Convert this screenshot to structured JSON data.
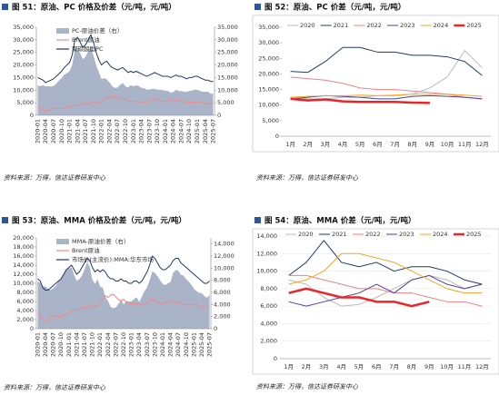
{
  "chart_data": [
    {
      "type": "combo",
      "title": "图 51：原油、PC 价格及价差（元/吨，元/吨）",
      "source": "资料来源：万得，信达证券研发中心",
      "categories": [
        "2020-01",
        null,
        null,
        "2020-04",
        null,
        null,
        "2020-07",
        null,
        null,
        "2020-10",
        null,
        null,
        "2021-01",
        null,
        null,
        "2021-04",
        null,
        null,
        "2021-07",
        null,
        null,
        "2021-10",
        null,
        null,
        "2022-01",
        null,
        null,
        "2022-04",
        null,
        null,
        "2022-07",
        null,
        null,
        "2022-10",
        null,
        null,
        "2023-01",
        null,
        null,
        "2023-04",
        null,
        null,
        "2023-07",
        null,
        null,
        "2023-10",
        null,
        null,
        "2024-01",
        null,
        null,
        "2024-04",
        null,
        null,
        "2024-07",
        null,
        null,
        "2024-10",
        null,
        null,
        "2025-01",
        null,
        null,
        "2025-04",
        null,
        null,
        "2025-07"
      ],
      "ylim": [
        0,
        35000
      ],
      "yticks": [
        0,
        {
          "value": 5000,
          "label": "5,000"
        },
        {
          "value": 10000,
          "label": "10,000"
        },
        {
          "value": 15000,
          "label": "15,000"
        },
        {
          "value": 20000,
          "label": "20,000"
        },
        {
          "value": 25000,
          "label": "25,000"
        },
        {
          "value": 30000,
          "label": "30,000"
        },
        {
          "value": 35000,
          "label": "35,000"
        }
      ],
      "y2lim": [
        0,
        35000
      ],
      "y2ticks": [
        0,
        {
          "value": 5000,
          "label": "5,000"
        },
        {
          "value": 10000,
          "label": "10,000"
        },
        {
          "value": 15000,
          "label": "15,000"
        },
        {
          "value": 20000,
          "label": "20,000"
        },
        {
          "value": 25000,
          "label": "25,000"
        },
        {
          "value": 30000,
          "label": "30,000"
        },
        {
          "value": 35000,
          "label": "35,000"
        }
      ],
      "grid": false,
      "series": [
        {
          "name": "PC-原油价差（右）",
          "style": "area",
          "axis": "y2",
          "color": "#a9b4c8",
          "values": [
            11800,
            11600,
            12000,
            11500,
            11600,
            11400,
            11700,
            12600,
            13800,
            14800,
            16100,
            16800,
            17500,
            20100,
            25900,
            26900,
            24700,
            22300,
            23300,
            25500,
            27200,
            23600,
            19900,
            17200,
            14400,
            14800,
            14200,
            13100,
            11600,
            10900,
            11000,
            12100,
            12800,
            11500,
            11100,
            12000,
            11500,
            11900,
            11700,
            10900,
            10800,
            10200,
            10300,
            10500,
            10500,
            10200,
            10200,
            10000,
            9900,
            9700,
            9000,
            9200,
            10200,
            9700,
            9600,
            9400,
            9300,
            9700,
            9800,
            10300,
            10100,
            9700,
            9400,
            9400,
            9400,
            8600,
            8600
          ]
        },
        {
          "name": "Brent原油",
          "style": "line",
          "color": "#f4878a",
          "values": [
            3200,
            2900,
            2000,
            1500,
            1900,
            2600,
            2800,
            2900,
            2700,
            2700,
            2900,
            3200,
            3500,
            3900,
            4100,
            4100,
            4300,
            4700,
            4700,
            4500,
            4800,
            5400,
            5100,
            4800,
            5600,
            6200,
            7300,
            6900,
            7400,
            7600,
            7000,
            6400,
            6200,
            6500,
            5900,
            5500,
            5500,
            5600,
            5300,
            5600,
            5200,
            5300,
            5700,
            6000,
            6500,
            6300,
            5800,
            5500,
            5600,
            5800,
            6000,
            6300,
            5800,
            5800,
            5900,
            5600,
            5200,
            5300,
            5200,
            5200,
            5400,
            5300,
            5100,
            4600,
            4600,
            4900,
            4900
          ]
        },
        {
          "name": "聚碳酸酯PC",
          "style": "line",
          "color": "#1f3864",
          "values": [
            15000,
            14500,
            14000,
            13000,
            13500,
            14000,
            14500,
            15500,
            16500,
            17500,
            19000,
            20000,
            21000,
            24000,
            30000,
            31000,
            29000,
            27000,
            28000,
            30000,
            32000,
            29000,
            25000,
            22000,
            20000,
            21000,
            21500,
            20000,
            19000,
            18500,
            18000,
            18500,
            19000,
            18000,
            17000,
            17500,
            17000,
            17500,
            17000,
            16500,
            16000,
            15500,
            16000,
            16500,
            17000,
            16500,
            16000,
            15500,
            15500,
            15500,
            15000,
            15500,
            16000,
            15500,
            15500,
            15000,
            14500,
            15000,
            15000,
            15500,
            15500,
            15000,
            14500,
            14000,
            14000,
            13500,
            13500
          ]
        }
      ]
    },
    {
      "type": "line",
      "title": "图 52：原油、PC 价差（元/吨，元/吨）",
      "source": "资料来源：万得，信达证券研发中心",
      "categories": [
        "1月",
        "2月",
        "3月",
        "4月",
        "5月",
        "6月",
        "7月",
        "8月",
        "9月",
        "10月",
        "11月",
        "12月"
      ],
      "ylim": [
        0,
        35000
      ],
      "yticks": [
        0,
        {
          "value": 5000,
          "label": "5,000"
        },
        {
          "value": 10000,
          "label": "10,000"
        },
        {
          "value": 15000,
          "label": "15,000"
        },
        {
          "value": 20000,
          "label": "20,000"
        },
        {
          "value": 25000,
          "label": "25,000"
        },
        {
          "value": 30000,
          "label": "30,000"
        },
        {
          "value": 35000,
          "label": "35,000"
        }
      ],
      "grid": false,
      "series": [
        {
          "name": "2020",
          "color": "#bbbbbb",
          "values": [
            12500,
            12000,
            12000,
            12500,
            12500,
            13000,
            13000,
            13500,
            15500,
            19000,
            27500,
            22000
          ]
        },
        {
          "name": "2021",
          "color": "#1f3a6e",
          "values": [
            20800,
            20500,
            24000,
            28500,
            28500,
            27000,
            27000,
            26000,
            26000,
            25500,
            24000,
            19500
          ]
        },
        {
          "name": "2022",
          "color": "#f08080",
          "values": [
            19000,
            18500,
            18000,
            17000,
            15500,
            15000,
            15000,
            14500,
            14000,
            13500,
            12500,
            12000
          ]
        },
        {
          "name": "2023",
          "color": "#4b3f9e",
          "values": [
            12000,
            12500,
            13000,
            12800,
            12500,
            12000,
            12000,
            12800,
            13000,
            12800,
            12500,
            12000
          ]
        },
        {
          "name": "2024",
          "color": "#f5a623",
          "values": [
            12500,
            12800,
            13000,
            13000,
            13200,
            13000,
            13200,
            13500,
            13500,
            13500,
            13200,
            12800
          ]
        },
        {
          "name": "2025",
          "color": "#e8262a",
          "width": 2.5,
          "values": [
            12000,
            11500,
            11800,
            11200,
            11000,
            11000,
            11000,
            10800,
            10700,
            null,
            null,
            null
          ]
        }
      ]
    },
    {
      "type": "combo",
      "title": "图 53：原油、MMA 价格及价差（元/吨，元/吨）",
      "source": "资料来源：万得，信达证券研发中心",
      "categories": [
        "2020-01",
        null,
        null,
        "2020-04",
        null,
        null,
        "2020-07",
        null,
        null,
        "2020-10",
        null,
        null,
        "2021-01",
        null,
        null,
        "2021-04",
        null,
        null,
        "2021-07",
        null,
        null,
        "2021-10",
        null,
        null,
        "2022-01",
        null,
        null,
        "2022-04",
        null,
        null,
        "2022-07",
        null,
        null,
        "2022-10",
        null,
        null,
        "2023-01",
        null,
        null,
        "2023-04",
        null,
        null,
        "2023-07",
        null,
        null,
        "2023-10",
        null,
        null,
        "2024-01",
        null,
        null,
        "2024-04",
        null,
        null,
        "2024-07",
        null,
        null,
        "2024-10",
        null,
        null,
        "2025-01",
        null,
        null,
        "2025-04",
        null,
        null,
        "2025-07"
      ],
      "ylim": [
        0,
        20000
      ],
      "yticks": [
        0,
        {
          "value": 2000,
          "label": "2,000"
        },
        {
          "value": 4000,
          "label": "4,000"
        },
        {
          "value": 6000,
          "label": "6,000"
        },
        {
          "value": 8000,
          "label": "8,000"
        },
        {
          "value": 10000,
          "label": "10,000"
        },
        {
          "value": 12000,
          "label": "12,000"
        },
        {
          "value": 14000,
          "label": "14,000"
        },
        {
          "value": 16000,
          "label": "16,000"
        },
        {
          "value": 18000,
          "label": "18,000"
        },
        {
          "value": 20000,
          "label": "20,000"
        }
      ],
      "y2lim": [
        0,
        15000
      ],
      "y2ticks": [
        0,
        {
          "value": 2000,
          "label": "2,000"
        },
        {
          "value": 4000,
          "label": "4,000"
        },
        {
          "value": 6000,
          "label": "6,000"
        },
        {
          "value": 8000,
          "label": "8,000"
        },
        {
          "value": 10000,
          "label": "10,000"
        },
        {
          "value": 12000,
          "label": "12,000"
        },
        {
          "value": 14000,
          "label": "14,000"
        }
      ],
      "grid": false,
      "series": [
        {
          "name": "MMA-原油价差（右）",
          "style": "area",
          "axis": "y2",
          "color": "#a9b4c8",
          "values": [
            7800,
            7600,
            7000,
            7000,
            6600,
            6400,
            6700,
            7100,
            7800,
            8300,
            9100,
            9800,
            10000,
            10100,
            8900,
            7900,
            8200,
            8800,
            9800,
            11000,
            10200,
            8100,
            7400,
            8200,
            6900,
            6800,
            5200,
            4600,
            3600,
            3400,
            3500,
            4100,
            4800,
            4000,
            4600,
            4500,
            4500,
            4900,
            5200,
            4400,
            5300,
            6200,
            6800,
            8000,
            9500,
            9200,
            8700,
            8000,
            7400,
            7200,
            7500,
            7700,
            9200,
            9700,
            9600,
            8900,
            8800,
            8200,
            7800,
            7300,
            6600,
            6200,
            5900,
            5900,
            5400,
            5100,
            5600
          ]
        },
        {
          "name": "Brent原油",
          "style": "line",
          "color": "#f4878a",
          "values": [
            3200,
            2900,
            2000,
            1500,
            1900,
            2600,
            2800,
            2900,
            2700,
            2700,
            2900,
            3200,
            3500,
            3900,
            4100,
            4100,
            4300,
            4700,
            4700,
            4500,
            4800,
            5400,
            5100,
            4800,
            5600,
            6200,
            7300,
            6900,
            7400,
            7600,
            7000,
            6400,
            6200,
            6500,
            5900,
            5500,
            5500,
            5600,
            5300,
            5600,
            5200,
            5300,
            5700,
            6000,
            6500,
            6300,
            5800,
            5500,
            5600,
            5800,
            6000,
            6300,
            5800,
            5800,
            5900,
            5600,
            5200,
            5300,
            5200,
            5200,
            5400,
            5300,
            5100,
            4600,
            4600,
            4900,
            4900
          ]
        },
        {
          "name": "市场价(主流价):MMA:华东市场",
          "style": "line",
          "color": "#1f3864",
          "values": [
            11000,
            10500,
            9000,
            8500,
            8500,
            9000,
            9500,
            10000,
            10500,
            11000,
            12000,
            13000,
            13500,
            14000,
            13000,
            12000,
            12500,
            13500,
            14500,
            15500,
            15000,
            13500,
            12500,
            13000,
            12500,
            13000,
            12500,
            11500,
            11000,
            11000,
            10500,
            10500,
            11000,
            10500,
            10500,
            10000,
            10000,
            10500,
            10500,
            10000,
            10500,
            11500,
            12500,
            14000,
            16000,
            15500,
            14500,
            13500,
            13000,
            13000,
            13500,
            14000,
            15000,
            15500,
            15500,
            14500,
            14000,
            13500,
            13000,
            12500,
            12000,
            11500,
            11000,
            10500,
            10000,
            10000,
            10500
          ]
        }
      ]
    },
    {
      "type": "line",
      "title": "图 54：原油、MMA 价差（元/吨，元/吨）",
      "source": "资料来源：万得，信达证券研发中心",
      "categories": [
        "1月",
        "2月",
        "3月",
        "4月",
        "5月",
        "6月",
        "7月",
        "8月",
        "9月",
        "10月",
        "11月",
        "12月"
      ],
      "ylim": [
        0,
        14000
      ],
      "yticks": [
        0,
        {
          "value": 2000,
          "label": "2,000"
        },
        {
          "value": 4000,
          "label": "4,000"
        },
        {
          "value": 6000,
          "label": "6,000"
        },
        {
          "value": 8000,
          "label": "8,000"
        },
        {
          "value": 10000,
          "label": "10,000"
        },
        {
          "value": 12000,
          "label": "12,000"
        },
        {
          "value": 14000,
          "label": "14,000"
        }
      ],
      "grid": true,
      "series": [
        {
          "name": "2020",
          "color": "#bbbbbb",
          "values": [
            9000,
            8500,
            7000,
            6000,
            6200,
            7000,
            8000,
            9000,
            9500,
            9000,
            8000,
            8500
          ]
        },
        {
          "name": "2021",
          "color": "#1f3a6e",
          "values": [
            9500,
            11000,
            13500,
            11000,
            10500,
            11000,
            10000,
            10500,
            10500,
            10000,
            9000,
            8500
          ]
        },
        {
          "name": "2022",
          "color": "#f08080",
          "values": [
            9500,
            9500,
            9000,
            8500,
            8000,
            8000,
            7500,
            7500,
            7000,
            6500,
            6500,
            6000
          ]
        },
        {
          "name": "2023",
          "color": "#4b3f9e",
          "values": [
            6500,
            6000,
            6500,
            7000,
            7500,
            8500,
            7500,
            9000,
            9500,
            8500,
            8000,
            8500
          ]
        },
        {
          "name": "2024",
          "color": "#f5a623",
          "values": [
            8500,
            9000,
            10000,
            12000,
            12000,
            11500,
            11000,
            10000,
            9000,
            8000,
            7500,
            7500
          ]
        },
        {
          "name": "2025",
          "color": "#e8262a",
          "width": 2.5,
          "values": [
            7500,
            8000,
            7500,
            7000,
            7000,
            6500,
            6500,
            6000,
            6500,
            null,
            null,
            null
          ]
        }
      ]
    }
  ]
}
